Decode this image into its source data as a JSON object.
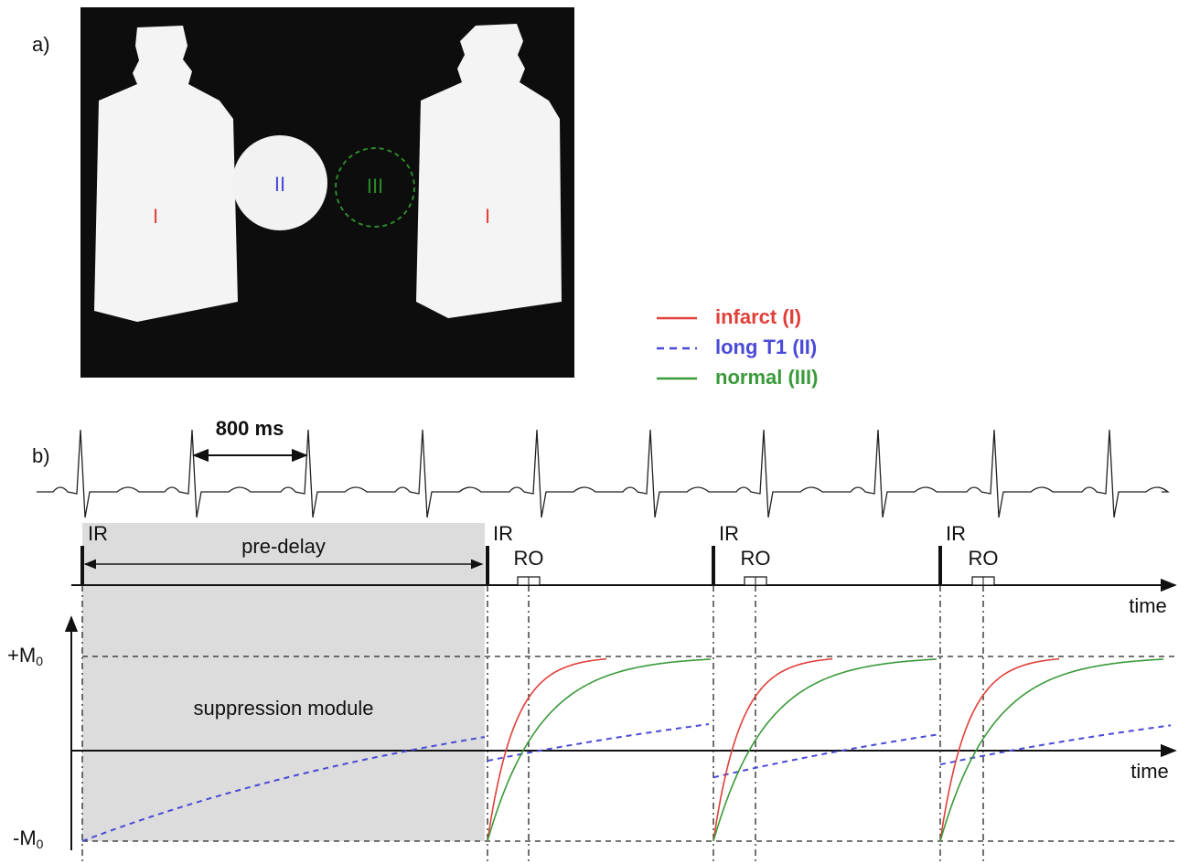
{
  "panel_a": {
    "label": "a)",
    "regions": [
      "I",
      "II",
      "III",
      "I"
    ]
  },
  "legend": [
    {
      "label": "infarct (I)",
      "color": "#e0403a",
      "dash": false
    },
    {
      "label": "long T1 (II)",
      "color": "#4a4ad8",
      "dash": true
    },
    {
      "label": "normal (III)",
      "color": "#3a9a3a",
      "dash": false
    }
  ],
  "panel_b": {
    "label": "b)",
    "interval": "800 ms",
    "pulse_labels": [
      "IR",
      "IR",
      "IR",
      "IR"
    ],
    "pre_delay": "pre-delay",
    "readout_labels": [
      "RO",
      "RO",
      "RO"
    ],
    "sequence_time_label": "time",
    "signal_time_label": "time",
    "plus_m0": {
      "text": "+M",
      "sub": "0"
    },
    "minus_m0": {
      "text": "-M",
      "sub": "0"
    },
    "module": "suppression module"
  }
}
